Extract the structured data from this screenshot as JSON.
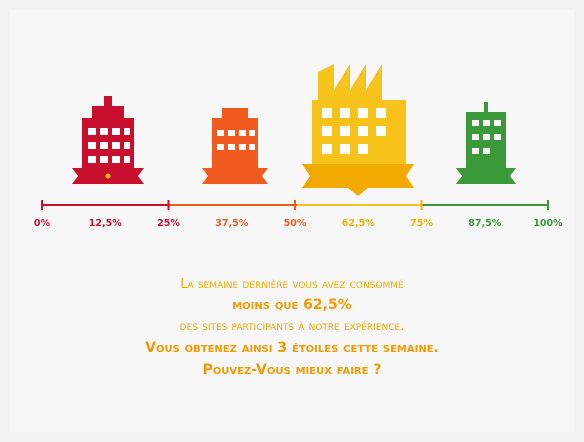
{
  "scale": {
    "ticks": [
      "0%",
      "12,5%",
      "25%",
      "37,5%",
      "50%",
      "62,5%",
      "75%",
      "87,5%",
      "100%"
    ]
  },
  "message": {
    "line1": "La semaine dernière vous avez consommé",
    "line2": "moins que 62,5%",
    "line3": "des sites participants à notre expérience.",
    "line4": "Vous obtenez ainsi 3 étoiles cette semaine.",
    "line5": "Pouvez-Vous mieux faire ?"
  }
}
